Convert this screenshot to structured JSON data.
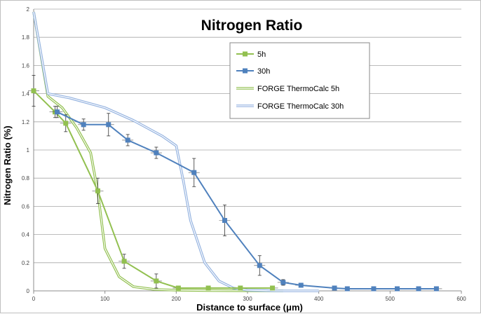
{
  "chart_data": {
    "type": "line",
    "title": "Nitrogen Ratio",
    "xlabel": "Distance to surface (μm)",
    "ylabel": "Nitrogen Ratio (%)",
    "xlim": [
      0,
      600
    ],
    "ylim": [
      0,
      2
    ],
    "xticks": [
      0,
      100,
      200,
      300,
      400,
      500,
      600
    ],
    "yticks": [
      0,
      0.2,
      0.4,
      0.6,
      0.8,
      1,
      1.2,
      1.4,
      1.6,
      1.8,
      2
    ],
    "xtick_labels": [
      "0",
      "100",
      "200",
      "300",
      "400",
      "500",
      "600"
    ],
    "ytick_labels": [
      "0",
      "0.2",
      "0.4",
      "0.6",
      "0.8",
      "1",
      "1.2",
      "1.4",
      "1.6",
      "1.8",
      "2"
    ],
    "grid": "horizontal",
    "legend_position": "top-right",
    "series": [
      {
        "name": "5h",
        "kind": "measured",
        "color": "#92c050",
        "x": [
          0,
          30,
          45,
          90,
          127,
          172,
          203,
          245,
          290,
          335
        ],
        "y": [
          1.42,
          1.27,
          1.19,
          0.71,
          0.21,
          0.07,
          0.02,
          0.02,
          0.02,
          0.02
        ],
        "yerr": [
          0.11,
          0.04,
          0.06,
          0.09,
          0.05,
          0.05,
          0.0,
          0.0,
          0.0,
          0.0
        ]
      },
      {
        "name": "30h",
        "kind": "measured",
        "color": "#4f81bd",
        "x": [
          33,
          70,
          105,
          132,
          172,
          225,
          268,
          317,
          350,
          375,
          422,
          440,
          477,
          510,
          540,
          565
        ],
        "y": [
          1.27,
          1.18,
          1.18,
          1.07,
          0.98,
          0.84,
          0.5,
          0.18,
          0.06,
          0.04,
          0.02,
          0.015,
          0.015,
          0.015,
          0.015,
          0.015
        ],
        "yerr": [
          0.04,
          0.04,
          0.08,
          0.04,
          0.04,
          0.1,
          0.11,
          0.07,
          0.02,
          0.0,
          0.0,
          0.0,
          0.0,
          0.0,
          0.0,
          0.0
        ]
      },
      {
        "name": "FORGE ThermoCalc 5h",
        "kind": "simulation",
        "color": "#92c050",
        "x": [
          0,
          20,
          40,
          60,
          80,
          90,
          100,
          120,
          140,
          170,
          200,
          250,
          300,
          350
        ],
        "y": [
          1.98,
          1.38,
          1.3,
          1.16,
          0.98,
          0.7,
          0.3,
          0.1,
          0.03,
          0.01,
          0.005,
          0.002,
          0.001,
          0.0
        ]
      },
      {
        "name": "FORGE ThermoCalc 30h",
        "kind": "simulation",
        "color": "#95b3e0",
        "x": [
          0,
          20,
          50,
          100,
          140,
          180,
          200,
          210,
          220,
          240,
          260,
          280,
          300,
          340,
          400
        ],
        "y": [
          1.98,
          1.4,
          1.37,
          1.3,
          1.21,
          1.1,
          1.03,
          0.78,
          0.5,
          0.2,
          0.07,
          0.02,
          0.005,
          0.0,
          0.0
        ]
      }
    ]
  }
}
